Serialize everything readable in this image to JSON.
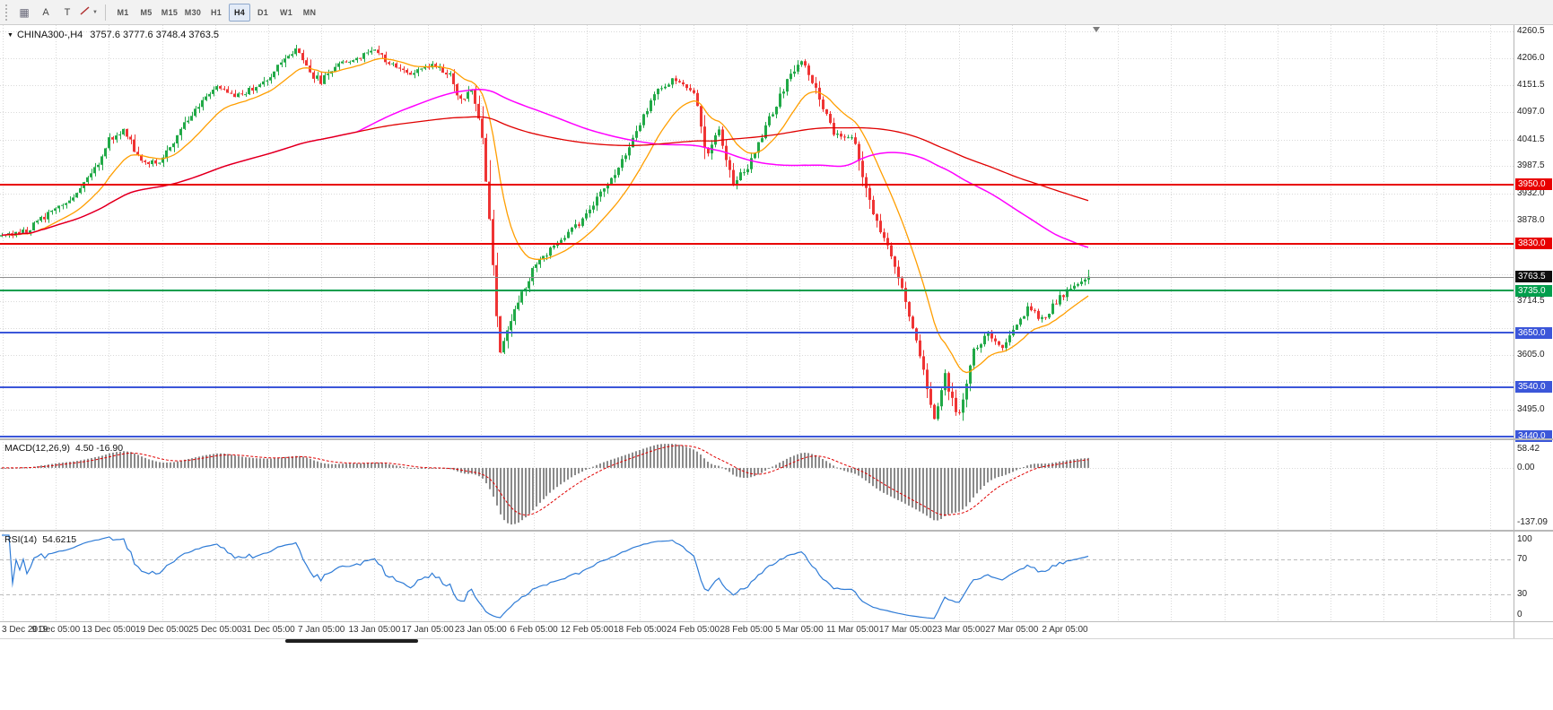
{
  "icons": {
    "one_click_arrow": "▼",
    "dropdown_caret": "▼",
    "grid": "▦"
  },
  "toolbar": {
    "buttons": {
      "annotation": "A",
      "text_tool": "T"
    },
    "timeframes": [
      "M1",
      "M5",
      "M15",
      "M30",
      "H1",
      "H4",
      "D1",
      "W1",
      "MN"
    ],
    "active_timeframe": "H4"
  },
  "chart_data": {
    "type": "candlestick",
    "symbol": "CHINA300-",
    "timeframe": "H4",
    "title": "CHINA300-,H4",
    "ohlc": {
      "open": 3757.6,
      "high": 3777.6,
      "low": 3748.4,
      "close": 3763.5
    },
    "ohlc_text": "3757.6 3777.6 3748.4 3763.5",
    "colors": {
      "up": "#21a947",
      "down": "#ef3434",
      "grid": "#d9d9d9",
      "level_red": "#e80000",
      "level_green": "#009e4c",
      "level_blue": "#3b56d9",
      "current_line": "#8f8f8f",
      "current_badge": "#0d0d0d"
    },
    "x_axis": {
      "labels": [
        "3 Dec 2019",
        "9 Dec 05:00",
        "13 Dec 05:00",
        "19 Dec 05:00",
        "25 Dec 05:00",
        "31 Dec 05:00",
        "7 Jan 05:00",
        "13 Jan 05:00",
        "17 Jan 05:00",
        "23 Jan 05:00",
        "6 Feb 05:00",
        "12 Feb 05:00",
        "18 Feb 05:00",
        "24 Feb 05:00",
        "28 Feb 05:00",
        "5 Mar 05:00",
        "11 Mar 05:00",
        "17 Mar 05:00",
        "23 Mar 05:00",
        "27 Mar 05:00",
        "2 Apr 05:00"
      ]
    },
    "y_axis": {
      "price_top": 4273,
      "price_bottom": 3436,
      "ticks": [
        {
          "v": 4260.5,
          "label": "4260.5"
        },
        {
          "v": 4206.0,
          "label": "4206.0"
        },
        {
          "v": 4151.5,
          "label": "4151.5"
        },
        {
          "v": 4097.0,
          "label": "4097.0"
        },
        {
          "v": 4041.5,
          "label": "4041.5"
        },
        {
          "v": 3987.5,
          "label": "3987.5"
        },
        {
          "v": 3932.0,
          "label": "3932.0"
        },
        {
          "v": 3878.0,
          "label": "3878.0"
        },
        {
          "v": 3823.5,
          "label": ""
        },
        {
          "v": 3769.0,
          "label": ""
        },
        {
          "v": 3714.5,
          "label": "3714.5"
        },
        {
          "v": 3659.5,
          "label": ""
        },
        {
          "v": 3605.0,
          "label": "3605.0"
        },
        {
          "v": 3550.5,
          "label": ""
        },
        {
          "v": 3495.0,
          "label": "3495.0"
        },
        {
          "v": 3440.5,
          "label": ""
        }
      ]
    },
    "horizontal_levels": [
      {
        "price": 3950.0,
        "label": "3950.0",
        "color": "#e80000",
        "width": 2
      },
      {
        "price": 3830.0,
        "label": "3830.0",
        "color": "#e80000",
        "width": 2
      },
      {
        "price": 3735.0,
        "label": "3735.0",
        "color": "#009e4c",
        "width": 2
      },
      {
        "price": 3650.0,
        "label": "3650.0",
        "color": "#3b56d9",
        "width": 2
      },
      {
        "price": 3540.0,
        "label": "3540.0",
        "color": "#3b56d9",
        "width": 2
      },
      {
        "price": 3440.0,
        "label": "3440.0",
        "color": "#3b56d9",
        "width": 2
      }
    ],
    "current_price": {
      "value": 3763.5,
      "label": "3763.5"
    },
    "price_path_anchors": [
      [
        0.0,
        3845
      ],
      [
        0.025,
        3858
      ],
      [
        0.049,
        3900
      ],
      [
        0.07,
        3932
      ],
      [
        0.085,
        3975
      ],
      [
        0.098,
        4040
      ],
      [
        0.112,
        4062
      ],
      [
        0.13,
        3992
      ],
      [
        0.147,
        4002
      ],
      [
        0.17,
        4078
      ],
      [
        0.196,
        4152
      ],
      [
        0.215,
        4132
      ],
      [
        0.235,
        4148
      ],
      [
        0.252,
        4180
      ],
      [
        0.262,
        4212
      ],
      [
        0.272,
        4222
      ],
      [
        0.285,
        4172
      ],
      [
        0.294,
        4160
      ],
      [
        0.312,
        4198
      ],
      [
        0.33,
        4205
      ],
      [
        0.343,
        4228
      ],
      [
        0.356,
        4196
      ],
      [
        0.375,
        4178
      ],
      [
        0.392,
        4194
      ],
      [
        0.412,
        4176
      ],
      [
        0.424,
        4110
      ],
      [
        0.432,
        4148
      ],
      [
        0.441,
        4070
      ],
      [
        0.448,
        3900
      ],
      [
        0.458,
        3612
      ],
      [
        0.468,
        3672
      ],
      [
        0.49,
        3786
      ],
      [
        0.515,
        3836
      ],
      [
        0.539,
        3890
      ],
      [
        0.56,
        3958
      ],
      [
        0.575,
        4018
      ],
      [
        0.588,
        4078
      ],
      [
        0.605,
        4148
      ],
      [
        0.62,
        4162
      ],
      [
        0.637,
        4142
      ],
      [
        0.648,
        4008
      ],
      [
        0.66,
        4062
      ],
      [
        0.673,
        3952
      ],
      [
        0.686,
        3986
      ],
      [
        0.702,
        4062
      ],
      [
        0.72,
        4146
      ],
      [
        0.735,
        4208
      ],
      [
        0.75,
        4138
      ],
      [
        0.765,
        4058
      ],
      [
        0.784,
        4042
      ],
      [
        0.8,
        3902
      ],
      [
        0.815,
        3826
      ],
      [
        0.833,
        3706
      ],
      [
        0.845,
        3606
      ],
      [
        0.858,
        3478
      ],
      [
        0.868,
        3562
      ],
      [
        0.88,
        3472
      ],
      [
        0.893,
        3608
      ],
      [
        0.908,
        3648
      ],
      [
        0.92,
        3622
      ],
      [
        0.931,
        3662
      ],
      [
        0.944,
        3700
      ],
      [
        0.958,
        3678
      ],
      [
        0.972,
        3716
      ],
      [
        0.985,
        3748
      ],
      [
        1.0,
        3763.5
      ]
    ],
    "candle_gen": {
      "count": 304,
      "seed": 5,
      "close_noise": 7,
      "wick_noise": 6
    },
    "moving_averages": [
      {
        "name": "fast-ma",
        "method": "ema",
        "period": 16,
        "color": "#ff9e00",
        "width": 1.3
      },
      {
        "name": "medium-ma",
        "method": "sma",
        "period": 100,
        "color": "#ff00ff",
        "width": 1.5
      },
      {
        "name": "slow-ma",
        "method": "sma",
        "period": 200,
        "color": "#e00000",
        "width": 1.3
      }
    ],
    "indicators": {
      "macd": {
        "label": "MACD(12,26,9)",
        "values": "4.50 -16.90",
        "fast": 12,
        "slow": 26,
        "signal": 9,
        "axis": {
          "max": "58.42",
          "zero": "0.00",
          "min": "-137.09"
        },
        "histogram_color": "#8a8a8a",
        "signal_color": "#e00000"
      },
      "rsi": {
        "label": "RSI(14)",
        "value": "54.6215",
        "period": 14,
        "axis_labels": [
          "100",
          "70",
          "30",
          "0"
        ],
        "levels": [
          70,
          30
        ],
        "line_color": "#2e7bd6"
      }
    }
  }
}
